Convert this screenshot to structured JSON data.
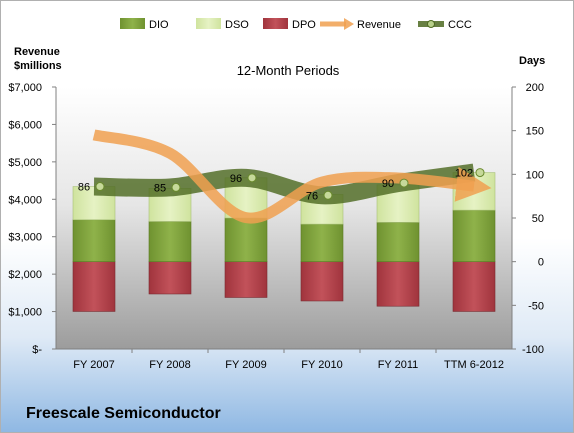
{
  "chart_data": {
    "type": "bar",
    "title": "12-Month Periods",
    "company": "Freescale Semiconductor",
    "left_axis_label": [
      "Revenue",
      "$millions"
    ],
    "right_axis_label": "Days",
    "left_ylim": [
      0,
      7000
    ],
    "right_ylim": [
      -100,
      200
    ],
    "left_ticks": [
      "$-",
      "$1,000",
      "$2,000",
      "$3,000",
      "$4,000",
      "$5,000",
      "$6,000",
      "$7,000"
    ],
    "right_ticks": [
      "-100",
      "-50",
      "0",
      "50",
      "100",
      "150",
      "200"
    ],
    "categories": [
      "FY 2007",
      "FY 2008",
      "FY 2009",
      "FY 2010",
      "FY 2011",
      "TTM 6-2012"
    ],
    "legend": [
      "DIO",
      "DSO",
      "DPO",
      "Revenue",
      "CCC"
    ],
    "colors": {
      "dio": "#7fa23a",
      "dso": "#d9ebb0",
      "dpo": "#b5404a",
      "revenue": "#f0a050",
      "ccc": "#4e6a22"
    },
    "series": [
      {
        "name": "DIO",
        "axis": "right",
        "values": [
          48,
          46,
          50,
          43,
          45,
          59
        ]
      },
      {
        "name": "DSO",
        "axis": "right",
        "values": [
          38,
          38,
          46,
          34,
          43,
          43
        ]
      },
      {
        "name": "DPO",
        "axis": "right",
        "values": [
          -57,
          -37,
          -41,
          -45,
          -51,
          -57
        ]
      },
      {
        "name": "Revenue",
        "axis": "left",
        "values": [
          5720,
          5230,
          3510,
          4460,
          4570,
          4350
        ]
      },
      {
        "name": "CCC",
        "axis": "right",
        "values": [
          86,
          85,
          96,
          76,
          90,
          102
        ]
      }
    ],
    "ccc_labels": [
      "86",
      "85",
      "96",
      "76",
      "90",
      "102"
    ],
    "grid": false,
    "legend_position": "top"
  }
}
